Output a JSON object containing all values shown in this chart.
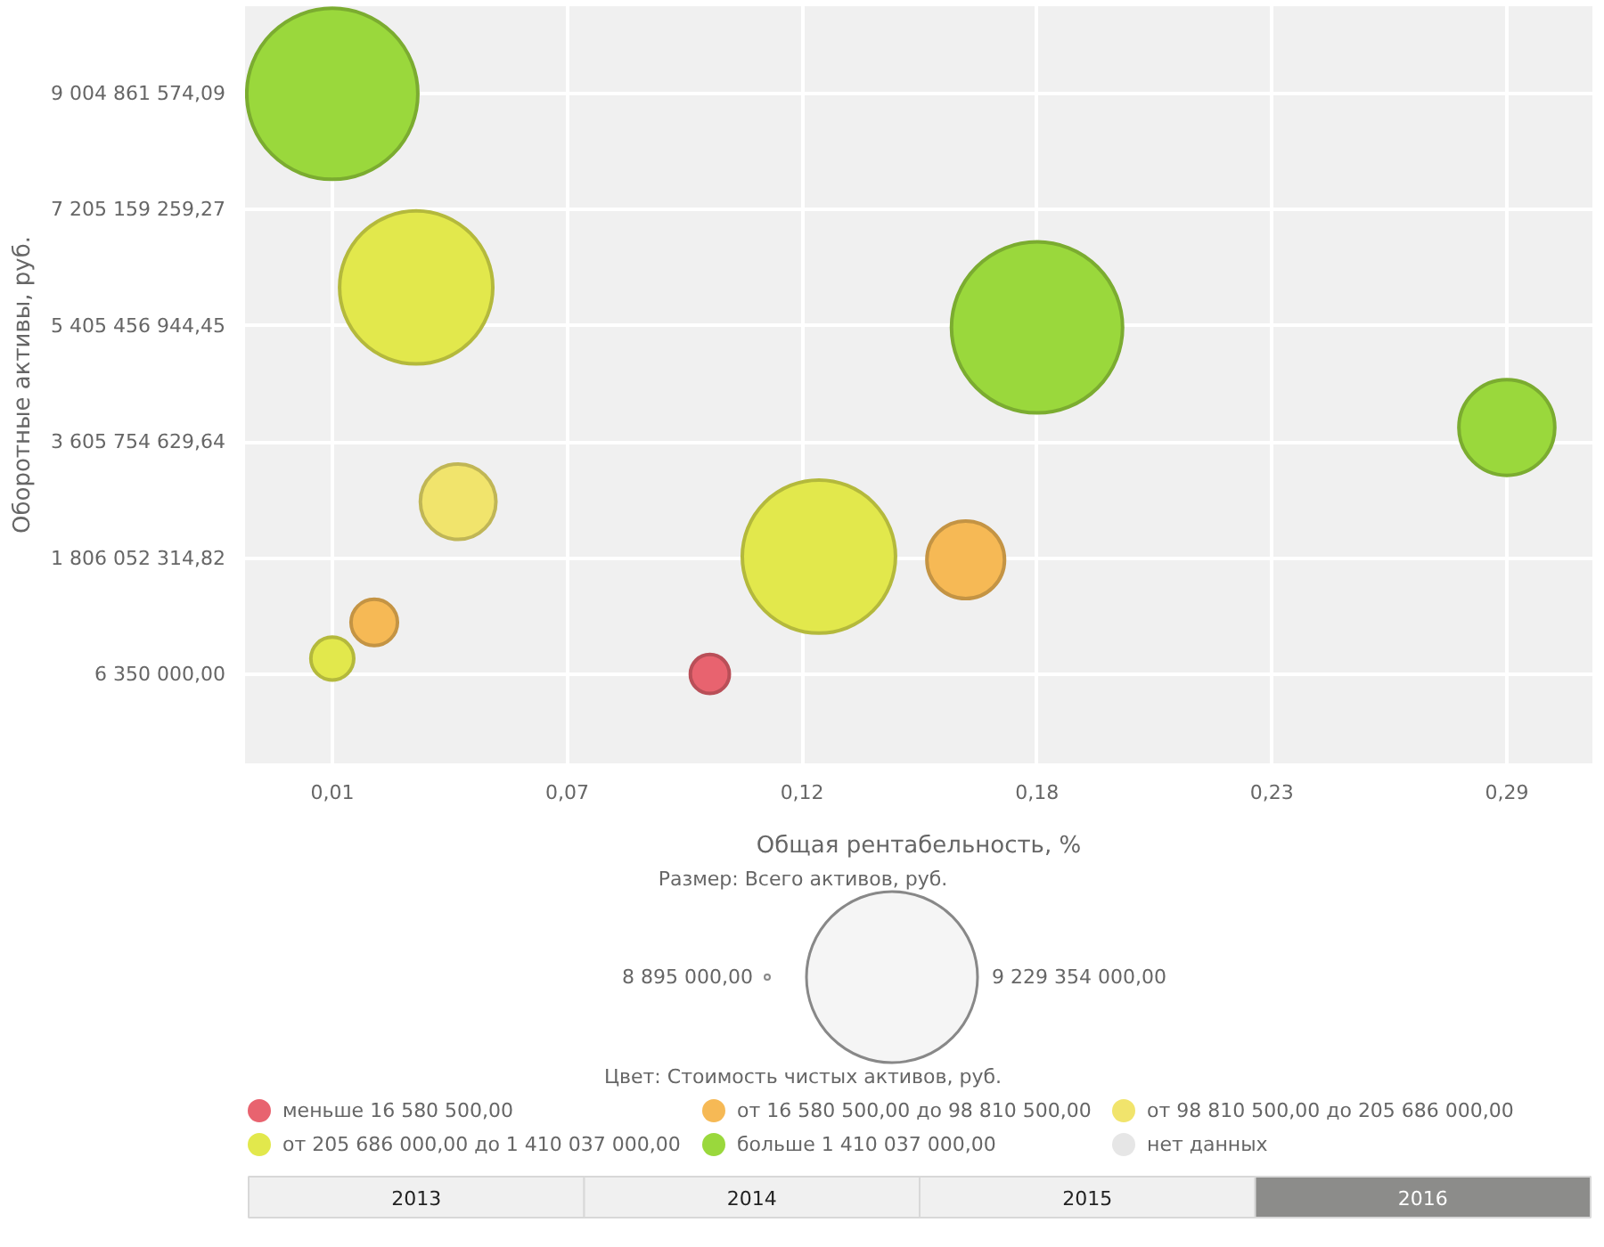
{
  "chart_data": {
    "type": "bubble",
    "xlabel": "Общая рентабельность, %",
    "ylabel": "Оборотные активы, руб.",
    "legend_title": "Цвет: Стоимость чистых активов, руб.",
    "xlim": [
      -0.0108,
      0.3104
    ],
    "ylim": [
      -1374000000,
      10357000000
    ],
    "xticks": [
      {
        "value": 0.01,
        "label": "0,01"
      },
      {
        "value": 0.066,
        "label": "0,07"
      },
      {
        "value": 0.122,
        "label": "0,12"
      },
      {
        "value": 0.178,
        "label": "0,18"
      },
      {
        "value": 0.234,
        "label": "0,23"
      },
      {
        "value": 0.29,
        "label": "0,29"
      }
    ],
    "yticks": [
      {
        "value": 6350000,
        "label": "6 350 000,00"
      },
      {
        "value": 1806052314.82,
        "label": "1 806 052 314,82"
      },
      {
        "value": 3605754629.64,
        "label": "3 605 754 629,64"
      },
      {
        "value": 5405456944.45,
        "label": "5 405 456 944,45"
      },
      {
        "value": 7205159259.27,
        "label": "7 205 159 259,27"
      },
      {
        "value": 9004861574.09,
        "label": "9 004 861 574,09"
      }
    ],
    "size_legend": [
      {
        "value": 8895000,
        "label": "8 895 000,00"
      },
      {
        "value": 9229354000,
        "label": "9 229 354 000,00"
      }
    ],
    "series": [
      {
        "name": "меньше 16 580 500,00",
        "color": "#e8636f",
        "x": [
          0.1
        ],
        "values": [
          10000000
        ],
        "sizes": [
          480000000
        ]
      },
      {
        "name": "от 16 580 500,00 до 98 810 500,00",
        "color": "#f6b955",
        "x": [
          0.02,
          0.161
        ],
        "values": [
          810000000,
          1780000000
        ],
        "sizes": [
          680000000,
          1900000000
        ]
      },
      {
        "name": "от 98 810 500,00 до 205 686 000,00",
        "color": "#f1e46c",
        "x": [
          0.04
        ],
        "values": [
          2680000000
        ],
        "sizes": [
          1800000000
        ]
      },
      {
        "name": "от 205 686 000,00 до 1 410 037 000,00",
        "color": "#e2e84c",
        "x": [
          0.03,
          0.126,
          0.01
        ],
        "values": [
          6000000000,
          1830000000,
          250000000
        ],
        "sizes": [
          7400000000,
          7400000000,
          580000000
        ]
      },
      {
        "name": "больше 1 410 037 000,00",
        "color": "#9ad83c",
        "x": [
          0.01,
          0.178,
          0.29
        ],
        "values": [
          9000000000,
          5380000000,
          3830000000
        ],
        "sizes": [
          9229354000,
          9229354000,
          2900000000
        ]
      },
      {
        "name": "нет данных",
        "color": "#e6e6e6"
      }
    ],
    "grid": true,
    "legend": "bottom",
    "annotations": [
      "Размер: Всего активов, руб.",
      "2013",
      "2014",
      "2015",
      "2016"
    ]
  }
}
